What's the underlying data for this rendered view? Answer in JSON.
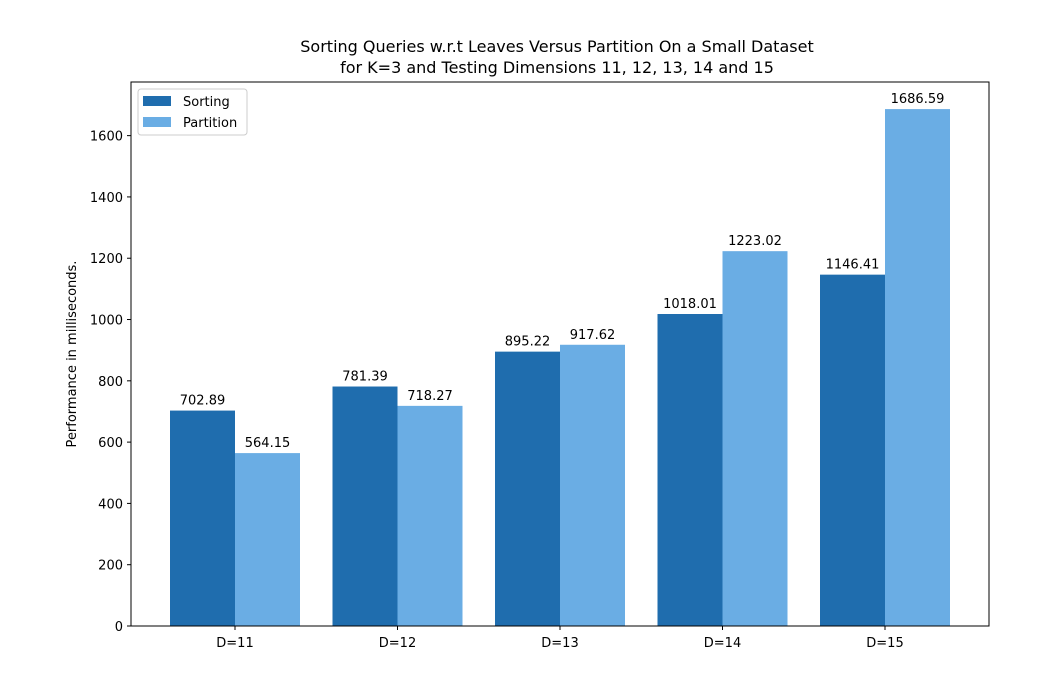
{
  "chart_data": {
    "type": "bar",
    "title_line1": "Sorting Queries w.r.t Leaves Versus Partition On a Small Dataset",
    "title_line2": "for K=3 and Testing Dimensions 11, 12, 13, 14 and 15",
    "xlabel": "",
    "ylabel": "Performance in milliseconds.",
    "categories": [
      "D=11",
      "D=12",
      "D=13",
      "D=14",
      "D=15"
    ],
    "ylim": [
      0,
      1775
    ],
    "yticks": [
      0,
      200,
      400,
      600,
      800,
      1000,
      1200,
      1400,
      1600
    ],
    "grid": false,
    "legend_position": "top-left",
    "series": [
      {
        "name": "Sorting",
        "color": "#1f6dae",
        "values": [
          702.89,
          781.39,
          895.22,
          1018.01,
          1146.41
        ],
        "labels": [
          "702.89",
          "781.39",
          "895.22",
          "1018.01",
          "1146.41"
        ]
      },
      {
        "name": "Partition",
        "color": "#6aade4",
        "values": [
          564.15,
          718.27,
          917.62,
          1223.02,
          1686.59
        ],
        "labels": [
          "564.15",
          "718.27",
          "917.62",
          "1223.02",
          "1686.59"
        ]
      }
    ]
  }
}
